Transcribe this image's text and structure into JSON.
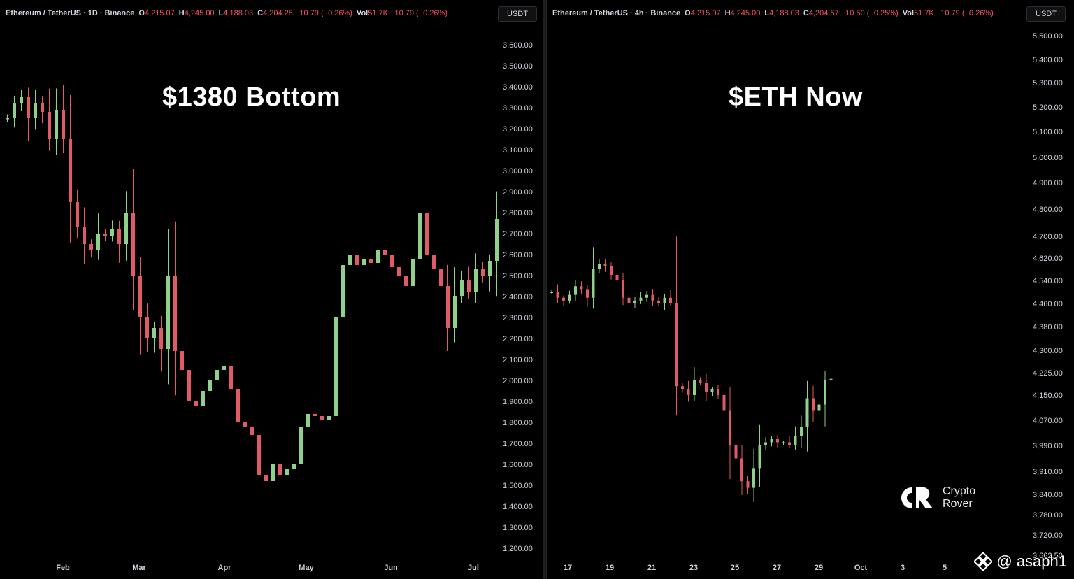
{
  "left": {
    "legend": {
      "symbol": "Ethereum / TetherUS · 1D · Binance",
      "open_label": "O",
      "open": "4,215.07",
      "high_label": "H",
      "high": "4,245.00",
      "low_label": "L",
      "low": "4,188.03",
      "close_label": "C",
      "close": "4,204.28",
      "change": "−10.79 (−0.26%)",
      "vol_label": "Vol",
      "vol": "51.7K",
      "vol_change": "−10.79 (−0.26%)"
    },
    "currency": "USDT",
    "title": "$1380 Bottom"
  },
  "right": {
    "legend": {
      "symbol": "Ethereum / TetherUS · 4h · Binance",
      "open_label": "O",
      "open": "4,215.07",
      "high_label": "H",
      "high": "4,245.00",
      "low_label": "L",
      "low": "4,188.03",
      "close_label": "C",
      "close": "4,204.57",
      "change": "−10.50 (−0.25%)",
      "vol_label": "Vol",
      "vol": "51.7K",
      "vol_change": "−10.79 (−0.26%)"
    },
    "currency": "USDT",
    "title": "$ETH Now"
  },
  "watermark": {
    "line1": "Crypto",
    "line2": "Rover"
  },
  "handle": "@ asaph1",
  "colors": {
    "up": "#26a69a",
    "down": "#ef5350",
    "up_candle": "#8fd18a",
    "down_candle": "#e05b66"
  },
  "chart_data": [
    {
      "type": "candlestick",
      "timeframe": "1D",
      "ylim": [
        1150,
        3750
      ],
      "yticks": [
        "1,200.00",
        "1,300.00",
        "1,400.00",
        "1,500.00",
        "1,600.00",
        "1,700.00",
        "1,800.00",
        "1,900.00",
        "2,000.00",
        "2,100.00",
        "2,200.00",
        "2,300.00",
        "2,400.00",
        "2,500.00",
        "2,600.00",
        "2,700.00",
        "2,800.00",
        "2,900.00",
        "3,000.00",
        "3,100.00",
        "3,200.00",
        "3,300.00",
        "3,400.00",
        "3,500.00",
        "3,600.00"
      ],
      "xticks": [
        "Feb",
        "Mar",
        "Apr",
        "May",
        "Jun",
        "Jul"
      ],
      "close_path": [
        3250,
        3320,
        3350,
        3250,
        3320,
        3280,
        3150,
        3290,
        3150,
        2850,
        2730,
        2650,
        2620,
        2700,
        2690,
        2720,
        2650,
        2800,
        2500,
        2300,
        2200,
        2250,
        2150,
        2500,
        2140,
        2050,
        1900,
        1880,
        1950,
        2000,
        2050,
        2070,
        1960,
        1800,
        1780,
        1740,
        1550,
        1520,
        1600,
        1550,
        1580,
        1600,
        1780,
        1840,
        1830,
        1810,
        1830,
        2300,
        2550,
        2600,
        2550,
        2580,
        2560,
        2620,
        2600,
        2540,
        2500,
        2450,
        2580,
        2800,
        2600,
        2530,
        2450,
        2250,
        2400,
        2480,
        2420,
        2530,
        2500,
        2570,
        2770
      ],
      "notable_low": 1380
    },
    {
      "type": "candlestick",
      "timeframe": "4h",
      "ylim": [
        3650,
        5550
      ],
      "yticks": [
        "3,662.50",
        "3,720.00",
        "3,780.00",
        "3,840.00",
        "3,910.00",
        "3,990.00",
        "4,070.00",
        "4,150.00",
        "4,225.00",
        "4,300.00",
        "4,380.00",
        "4,460.00",
        "4,540.00",
        "4,620.00",
        "4,700.00",
        "4,800.00",
        "4,900.00",
        "5,000.00",
        "5,100.00",
        "5,200.00",
        "5,300.00",
        "5,400.00",
        "5,500.00"
      ],
      "xticks": [
        "17",
        "19",
        "21",
        "23",
        "25",
        "27",
        "29",
        "Oct",
        "3",
        "5"
      ],
      "close_path": [
        4500,
        4480,
        4470,
        4490,
        4520,
        4510,
        4480,
        4580,
        4600,
        4590,
        4560,
        4540,
        4480,
        4460,
        4470,
        4480,
        4490,
        4470,
        4460,
        4480,
        4460,
        4180,
        4170,
        4150,
        4200,
        4190,
        4160,
        4170,
        4150,
        4100,
        3990,
        3950,
        3880,
        3860,
        3920,
        3990,
        4000,
        4010,
        4000,
        4000,
        3990,
        4020,
        4050,
        4140,
        4100,
        4120,
        4200,
        4204.57
      ],
      "last_close": 4204.57
    }
  ]
}
